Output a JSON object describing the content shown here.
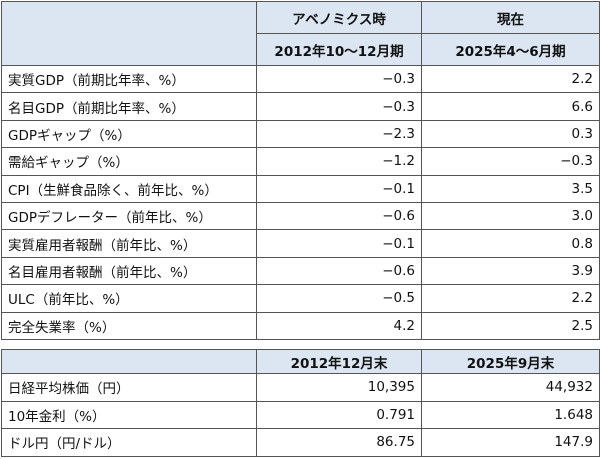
{
  "table1": {
    "header": [
      [
        "アベノミクス時",
        "現在"
      ],
      [
        "2012年10～12月期",
        "2025年4～6月期"
      ]
    ],
    "rows": [
      [
        "実質GDP（前期比年率、%）",
        "−0.3",
        "2.2"
      ],
      [
        "名目GDP（前期比年率、%）",
        "−0.3",
        "6.6"
      ],
      [
        "GDPギャップ（%）",
        "−2.3",
        "0.3"
      ],
      [
        "需給ギャップ（%）",
        "−1.2",
        "−0.3"
      ],
      [
        "CPI（生鮮食品除く、前年比、%）",
        "−0.1",
        "3.5"
      ],
      [
        "GDPデフレーター（前年比、%）",
        "−0.6",
        "3.0"
      ],
      [
        "実質雇用者報酬（前年比、%）",
        "−0.1",
        "0.8"
      ],
      [
        "名目雇用者報酬（前年比、%）",
        "−0.6",
        "3.9"
      ],
      [
        "ULC（前年比、%）",
        "−0.5",
        "2.2"
      ],
      [
        "完全失業率（%）",
        "4.2",
        "2.5"
      ]
    ]
  },
  "table2": {
    "header": [
      "2012年12月末",
      "2025年9月末"
    ],
    "rows": [
      [
        "日経平均株価（円）",
        "10,395",
        "44,932"
      ],
      [
        "10年金利（%）",
        "0.791",
        "1.648"
      ],
      [
        "ドル円（円/ドル）",
        "86.75",
        "147.9"
      ]
    ]
  }
}
